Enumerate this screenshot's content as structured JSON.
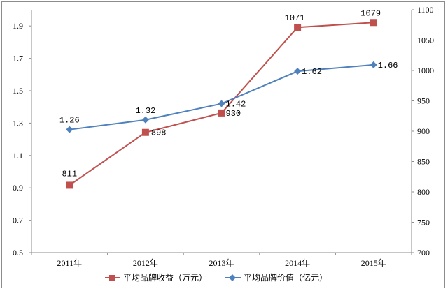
{
  "chart_data": {
    "type": "line",
    "categories": [
      "2011年",
      "2012年",
      "2013年",
      "2014年",
      "2015年"
    ],
    "series": [
      {
        "name": "平均品牌收益（万元）",
        "axis": "right",
        "color": "#c0504d",
        "marker": "square",
        "values": [
          811,
          898,
          930,
          1071,
          1079
        ],
        "labels": [
          "811",
          "898",
          "930",
          "1071",
          "1079"
        ]
      },
      {
        "name": "平均品牌价值（亿元）",
        "axis": "left",
        "color": "#4f81bd",
        "marker": "diamond",
        "values": [
          1.26,
          1.32,
          1.42,
          1.62,
          1.66
        ],
        "labels": [
          "1.26",
          "1.32",
          "1.42",
          "1.62",
          "1.66"
        ]
      }
    ],
    "y_left": {
      "min": 0.5,
      "max": 2.0,
      "ticks": [
        "0.5",
        "0.7",
        "0.9",
        "1.1",
        "1.3",
        "1.5",
        "1.7",
        "1.9"
      ]
    },
    "y_right": {
      "min": 700,
      "max": 1100,
      "ticks": [
        "700",
        "750",
        "800",
        "850",
        "900",
        "950",
        "1000",
        "1050",
        "1100"
      ]
    },
    "grid": false,
    "legend_position": "bottom"
  }
}
